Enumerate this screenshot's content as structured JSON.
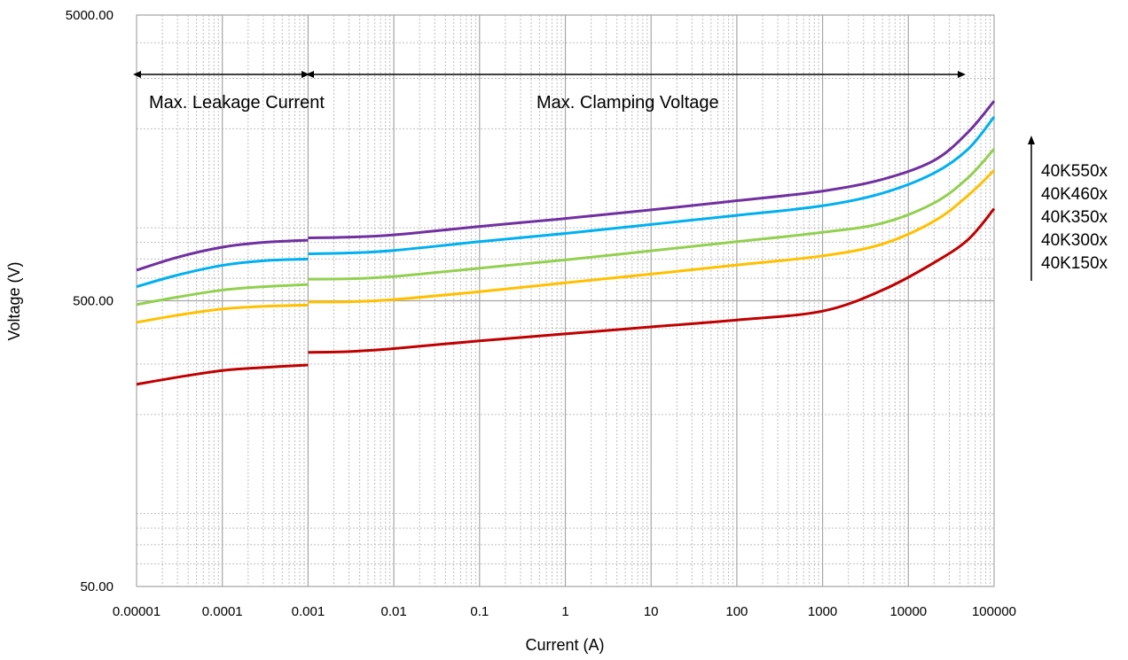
{
  "chart_data": {
    "type": "line",
    "xlabel": "Current (A)",
    "ylabel": "Voltage (V)",
    "xscale": "log",
    "yscale": "log",
    "xlim": [
      1e-05,
      100000
    ],
    "ylim": [
      50,
      5000
    ],
    "grid": true,
    "x_tick_labels": [
      "0.00001",
      "0.0001",
      "0.001",
      "0.01",
      "0.1",
      "1",
      "10",
      "100",
      "1000",
      "10000",
      "100000"
    ],
    "x_ticks": [
      1e-05,
      0.0001,
      0.001,
      0.01,
      0.1,
      1,
      10,
      100,
      1000,
      10000,
      100000
    ],
    "y_tick_labels": [
      "5000.00",
      "500.00",
      "50.00"
    ],
    "y_ticks": [
      5000,
      500,
      50
    ],
    "annotations": {
      "leakage": "Max. Leakage Current",
      "clamping": "Max. Clamping Voltage"
    },
    "legend": [
      "40K550x",
      "40K460x",
      "40K350x",
      "40K300x",
      "40K150x"
    ],
    "legend_position": "right",
    "series": [
      {
        "name": "40K550x",
        "color": "#7030A0",
        "segments": [
          {
            "x": [
              1e-05,
              3e-05,
              0.0001,
              0.0003,
              0.001
            ],
            "y": [
              640,
              710,
              770,
              800,
              815
            ]
          },
          {
            "x": [
              0.001,
              0.003,
              0.01,
              0.1,
              1,
              10,
              100,
              1000,
              5000,
              20000,
              50000,
              100000
            ],
            "y": [
              830,
              835,
              850,
              910,
              970,
              1040,
              1120,
              1210,
              1330,
              1550,
              1950,
              2500
            ]
          }
        ]
      },
      {
        "name": "40K460x",
        "color": "#00B0F0",
        "segments": [
          {
            "x": [
              1e-05,
              3e-05,
              0.0001,
              0.0003,
              0.001
            ],
            "y": [
              560,
              615,
              665,
              690,
              700
            ]
          },
          {
            "x": [
              0.001,
              0.003,
              0.01,
              0.1,
              1,
              10,
              100,
              1000,
              5000,
              20000,
              50000,
              100000
            ],
            "y": [
              730,
              735,
              750,
              805,
              860,
              925,
              995,
              1075,
              1190,
              1400,
              1700,
              2200
            ]
          }
        ]
      },
      {
        "name": "40K350x",
        "color": "#92D050",
        "segments": [
          {
            "x": [
              1e-05,
              3e-05,
              0.0001,
              0.0003,
              0.001
            ],
            "y": [
              485,
              515,
              545,
              560,
              570
            ]
          },
          {
            "x": [
              0.001,
              0.003,
              0.01,
              0.1,
              1,
              10,
              100,
              1000,
              5000,
              20000,
              50000,
              100000
            ],
            "y": [
              595,
              597,
              608,
              650,
              695,
              748,
              805,
              868,
              935,
              1100,
              1350,
              1700
            ]
          }
        ]
      },
      {
        "name": "40K300x",
        "color": "#FFC000",
        "segments": [
          {
            "x": [
              1e-05,
              3e-05,
              0.0001,
              0.0003,
              0.001
            ],
            "y": [
              420,
              445,
              468,
              478,
              483
            ]
          },
          {
            "x": [
              0.001,
              0.003,
              0.01,
              0.1,
              1,
              10,
              100,
              1000,
              5000,
              20000,
              50000,
              100000
            ],
            "y": [
              495,
              496,
              505,
              538,
              578,
              620,
              667,
              718,
              790,
              950,
              1170,
              1430
            ]
          }
        ]
      },
      {
        "name": "40K150x",
        "color": "#C00000",
        "segments": [
          {
            "x": [
              1e-05,
              3e-05,
              0.0001,
              0.0003,
              0.001
            ],
            "y": [
              255,
              270,
              285,
              292,
              298
            ]
          },
          {
            "x": [
              0.001,
              0.003,
              0.01,
              0.1,
              1,
              10,
              100,
              1000,
              5000,
              20000,
              50000,
              100000
            ],
            "y": [
              330,
              332,
              340,
              362,
              383,
              405,
              428,
              460,
              545,
              680,
              820,
              1050
            ]
          }
        ]
      }
    ]
  }
}
